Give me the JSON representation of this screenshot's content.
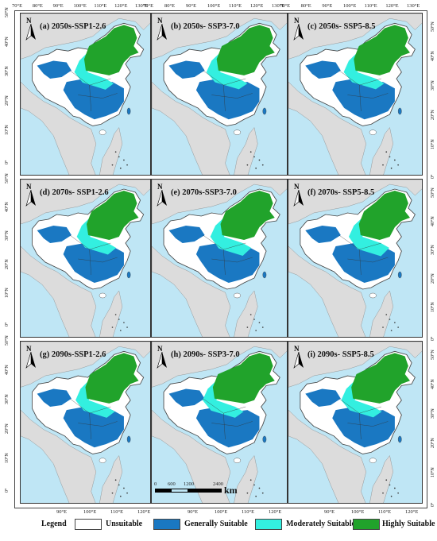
{
  "top_lon_ticks": [
    [
      "70°E",
      "80°E",
      "90°E",
      "100°E",
      "110°E",
      "120°E",
      "130°E"
    ],
    [
      "70°E",
      "80°E",
      "90°E",
      "100°E",
      "110°E",
      "120°E",
      "130°E"
    ],
    [
      "70°E",
      "80°E",
      "90°E",
      "100°E",
      "110°E",
      "120°E",
      "130°E"
    ]
  ],
  "bottom_lon_ticks": [
    [
      "90°E",
      "100°E",
      "110°E",
      "120°E"
    ],
    [
      "90°E",
      "100°E",
      "110°E",
      "120°E"
    ],
    [
      "90°E",
      "100°E",
      "110°E",
      "120°E"
    ]
  ],
  "left_lat_ticks": [
    [
      "50°N",
      "40°N",
      "30°N",
      "20°N",
      "10°N",
      "0°"
    ],
    [
      "50°N",
      "40°N",
      "30°N",
      "20°N",
      "10°N",
      "0°"
    ],
    [
      "50°N",
      "40°N",
      "30°N",
      "20°N",
      "10°N",
      "0°"
    ]
  ],
  "right_lat_ticks": [
    [
      "50°N",
      "40°N",
      "30°N",
      "20°N",
      "10°N",
      "0°"
    ],
    [
      "50°N",
      "40°N",
      "30°N",
      "20°N",
      "10°N",
      "0°"
    ],
    [
      "50°N",
      "40°N",
      "30°N",
      "20°N",
      "10°N",
      "0°"
    ]
  ],
  "panels": [
    {
      "title": "(a) 2050s-SSP1-2.6",
      "moderate": 0.35,
      "high": 0.55
    },
    {
      "title": "(b)  2050s- SSP3-7.0",
      "moderate": 0.3,
      "high": 0.6
    },
    {
      "title": "(c)  2050s- SSP5-8.5",
      "moderate": 0.3,
      "high": 0.55
    },
    {
      "title": "(d)  2070s- SSP1-2.6",
      "moderate": 0.45,
      "high": 0.45
    },
    {
      "title": "(e)  2070s-SSP3-7.0",
      "moderate": 0.6,
      "high": 0.45
    },
    {
      "title": "(f)  2070s- SSP5-8.5",
      "moderate": 0.65,
      "high": 0.35
    },
    {
      "title": "(g)  2090s-SSP1-2.6",
      "moderate": 0.35,
      "high": 0.5
    },
    {
      "title": "(h)  2090s- SSP3-7.0",
      "moderate": 0.35,
      "high": 0.75
    },
    {
      "title": "(i)  2090s- SSP5-8.5",
      "moderate": 0.3,
      "high": 0.65
    }
  ],
  "north_label": "N",
  "scale": {
    "ticks": [
      "0",
      "600",
      "1200",
      "2400"
    ],
    "unit": "km"
  },
  "legend": {
    "title": "Legend",
    "items": [
      {
        "label": "Unsuitable",
        "color": "#ffffff"
      },
      {
        "label": "Generally Suitable",
        "color": "#1a78c2"
      },
      {
        "label": "Moderately Suitable",
        "color": "#33efe0"
      },
      {
        "label": "Highly Suitable",
        "color": "#21a32b"
      }
    ]
  },
  "colors": {
    "ocean": "#bfe6f5",
    "land": "#dcdcdc",
    "border": "#444444"
  }
}
